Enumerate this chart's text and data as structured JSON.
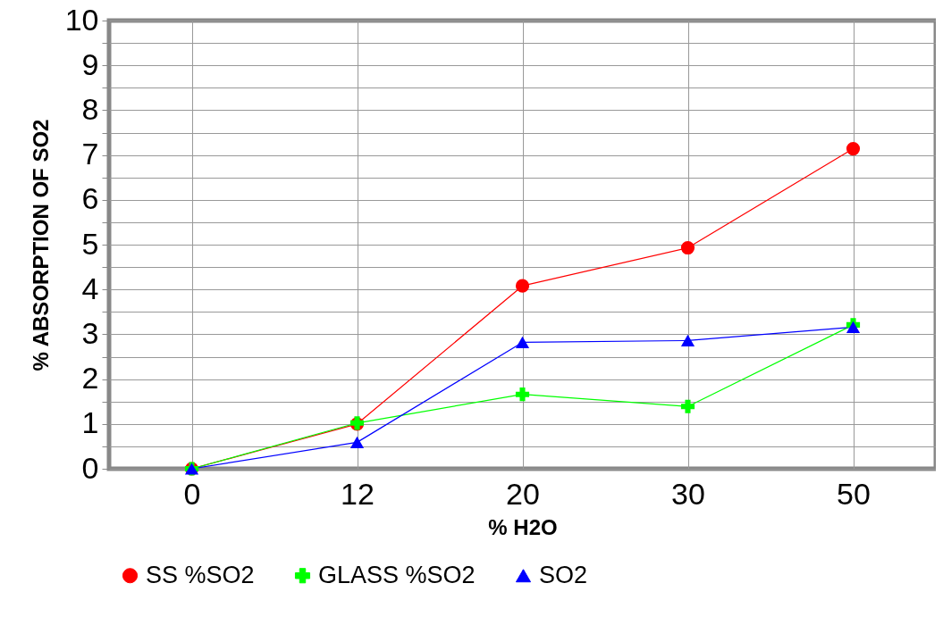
{
  "chart_data": {
    "type": "line",
    "xlabel": "% H2O",
    "ylabel": "% ABSORPTION OF SO2",
    "categories": [
      "0",
      "12",
      "20",
      "30",
      "50"
    ],
    "series": [
      {
        "name": "SS %SO2",
        "color": "#ff0000",
        "marker": "circle",
        "values": [
          0,
          1.0,
          4.08,
          4.93,
          7.14
        ]
      },
      {
        "name": "GLASS %SO2",
        "color": "#00ff00",
        "marker": "cross",
        "values": [
          0,
          1.02,
          1.66,
          1.39,
          3.21
        ]
      },
      {
        "name": "SO2",
        "color": "#0000ff",
        "marker": "triangle",
        "values": [
          0,
          0.59,
          2.82,
          2.86,
          3.16
        ]
      }
    ],
    "ylim": [
      0,
      10
    ],
    "yticks": [
      0,
      {
        "value": 0.5,
        "label": null
      },
      1,
      {
        "value": 1.5,
        "label": null
      },
      2,
      {
        "value": 2.5,
        "label": null
      },
      3,
      {
        "value": 3.5,
        "label": null
      },
      4,
      {
        "value": 4.5,
        "label": null
      },
      5,
      {
        "value": 5.5,
        "label": null
      },
      6,
      {
        "value": 6.5,
        "label": null
      },
      7,
      {
        "value": 7.5,
        "label": null
      },
      8,
      {
        "value": 8.5,
        "label": null
      },
      9,
      {
        "value": 9.5,
        "label": null
      },
      10
    ],
    "grid": true,
    "legend": "bottom",
    "line_style": "solid"
  }
}
